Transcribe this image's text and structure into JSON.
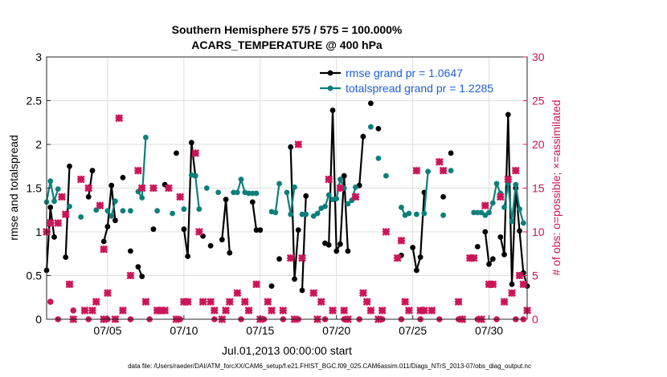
{
  "chart_data": {
    "type": "line",
    "title": "Southern Hemisphere 575 / 575 = 100.000%",
    "subtitle": "ACARS_TEMPERATURE @ 400 hPa",
    "xlabel": "Jul.01,2013 00:00:00 start",
    "ylabel": "rmse and totalspread",
    "y2label": "# of obs: o=possible; ×=assimilated",
    "footnote": "data file: /Users/raeder/DAI/ATM_forcXX/CAM6_setup/f.e21.FHIST_BGC.f09_025.CAM6assim.011/Diags_NTrS_2013-07/obs_diag_output.nc",
    "xlim": [
      1.0,
      32.5
    ],
    "ylim": [
      0,
      3
    ],
    "y2lim": [
      0,
      30
    ],
    "grid": true,
    "legend_position": "top-right",
    "x_ticks": [
      5,
      10,
      15,
      20,
      25,
      30
    ],
    "x_tick_labels": [
      "07/05",
      "07/10",
      "07/15",
      "07/20",
      "07/25",
      "07/30"
    ],
    "y_ticks": [
      0,
      0.5,
      1,
      1.5,
      2,
      2.5,
      3
    ],
    "y_tick_labels": [
      "0",
      "0.5",
      "1",
      "1.5",
      "2",
      "2.5",
      "3"
    ],
    "y2_ticks": [
      0,
      5,
      10,
      15,
      20,
      25,
      30
    ],
    "y2_tick_labels": [
      "0",
      "5",
      "10",
      "15",
      "20",
      "25",
      "30"
    ],
    "series": [
      {
        "name": "rmse grand pr = 1.0647",
        "color": "#000000",
        "axis": "left",
        "points": [
          [
            [
              1.0,
              0.56
            ],
            [
              1.25,
              1.28
            ],
            [
              1.5,
              0.94
            ]
          ],
          [
            [
              2.25,
              0.71
            ],
            [
              2.5,
              1.75
            ]
          ],
          [
            [
              3.75,
              1.4
            ],
            [
              4.0,
              1.7
            ]
          ],
          [
            [
              4.75,
              0.89
            ],
            [
              5.0,
              1.06
            ],
            [
              5.25,
              1.53
            ],
            [
              5.5,
              1.13
            ]
          ],
          [
            [
              6.0,
              1.62
            ]
          ],
          [
            [
              6.5,
              0.78
            ]
          ],
          [
            [
              7.0,
              0.6
            ],
            [
              7.25,
              0.49
            ]
          ],
          [
            [
              8.0,
              1.03
            ]
          ],
          [
            [
              8.75,
              1.54
            ]
          ],
          [
            [
              9.5,
              1.9
            ]
          ],
          [
            [
              10.0,
              1.03
            ],
            [
              10.25,
              0.72
            ],
            [
              10.5,
              2.02
            ],
            [
              10.75,
              1.64
            ]
          ],
          [
            [
              11.25,
              0.95
            ]
          ],
          [
            [
              11.75,
              0.84
            ]
          ],
          [
            [
              12.5,
              0.91
            ],
            [
              12.75,
              1.37
            ],
            [
              13.0,
              0.76
            ]
          ],
          [
            [
              14.5,
              1.34
            ],
            [
              14.75,
              1.02
            ],
            [
              15.0,
              1.02
            ]
          ],
          [
            [
              15.75,
              0.38
            ]
          ],
          [
            [
              16.25,
              0.69
            ]
          ],
          [
            [
              17.0,
              1.97
            ],
            [
              17.25,
              0.46
            ],
            [
              17.5,
              1.02
            ]
          ],
          [
            [
              17.75,
              0.33
            ],
            [
              18.0,
              1.41
            ]
          ],
          [
            [
              19.25,
              0.87
            ],
            [
              19.5,
              0.85
            ],
            [
              19.75,
              2.39
            ],
            [
              20.0,
              0.78
            ],
            [
              20.25,
              0.86
            ],
            [
              20.5,
              1.64
            ],
            [
              20.75,
              0.78
            ]
          ],
          [
            [
              21.5,
              1.53
            ],
            [
              21.75,
              2.09
            ]
          ],
          [
            [
              22.25,
              2.47
            ]
          ],
          [
            [
              22.75,
              2.18
            ]
          ],
          [
            [
              24.25,
              0.73
            ]
          ],
          [
            [
              25.0,
              0.82
            ],
            [
              25.25,
              0.56
            ],
            [
              25.5,
              0.71
            ],
            [
              25.75,
              1.45
            ]
          ],
          [
            [
              27.0,
              1.4
            ]
          ],
          [
            [
              27.5,
              1.9
            ]
          ],
          [
            [
              29.25,
              0.83
            ]
          ],
          [
            [
              29.75,
              1.0
            ],
            [
              30.0,
              0.63
            ],
            [
              30.25,
              0.69
            ]
          ],
          [
            [
              30.75,
              0.94
            ],
            [
              31.0,
              0.74
            ],
            [
              31.25,
              2.34
            ],
            [
              31.5,
              0.4
            ],
            [
              31.75,
              1.5
            ],
            [
              32.0,
              1.01
            ],
            [
              32.25,
              0.53
            ],
            [
              32.5,
              0.38
            ]
          ]
        ]
      },
      {
        "name": "totalspread grand pr = 1.2285",
        "color": "#0c7f7c",
        "axis": "left",
        "points": [
          [
            [
              1.0,
              1.34
            ],
            [
              1.25,
              1.58
            ],
            [
              1.5,
              1.35
            ],
            [
              1.75,
              1.49
            ]
          ],
          [
            [
              2.5,
              1.29
            ]
          ],
          [
            [
              3.25,
              1.17
            ]
          ],
          [
            [
              4.25,
              1.25
            ]
          ],
          [
            [
              5.0,
              1.24
            ],
            [
              5.25,
              1.18
            ],
            [
              5.5,
              1.35
            ]
          ],
          [
            [
              6.0,
              1.24
            ]
          ],
          [
            [
              6.5,
              1.24
            ]
          ],
          [
            [
              7.0,
              1.46
            ],
            [
              7.25,
              1.39
            ],
            [
              7.5,
              2.08
            ]
          ],
          [
            [
              8.25,
              1.24
            ]
          ],
          [
            [
              9.25,
              1.21
            ]
          ],
          [
            [
              10.0,
              1.26
            ]
          ],
          [
            [
              10.5,
              1.65
            ],
            [
              10.75,
              1.64
            ],
            [
              11.0,
              1.26
            ]
          ],
          [
            [
              11.5,
              1.5
            ]
          ],
          [
            [
              12.25,
              1.45
            ]
          ],
          [
            [
              13.25,
              1.45
            ],
            [
              13.5,
              1.45
            ],
            [
              13.75,
              1.6
            ],
            [
              14.0,
              1.45
            ]
          ],
          [
            [
              14.25,
              1.44
            ],
            [
              14.5,
              1.44
            ],
            [
              14.75,
              1.44
            ]
          ],
          [
            [
              15.75,
              1.23
            ],
            [
              16.0,
              1.22
            ],
            [
              16.25,
              1.55
            ]
          ],
          [
            [
              16.75,
              1.45
            ],
            [
              17.0,
              1.2
            ],
            [
              17.25,
              1.51
            ]
          ],
          [
            [
              17.75,
              1.2
            ],
            [
              18.0,
              1.2
            ]
          ],
          [
            [
              18.5,
              1.18
            ],
            [
              18.75,
              1.21
            ],
            [
              19.0,
              1.27
            ],
            [
              19.25,
              1.29
            ],
            [
              19.5,
              1.42
            ],
            [
              19.75,
              1.37
            ],
            [
              20.0,
              1.38
            ],
            [
              20.25,
              1.6
            ],
            [
              20.5,
              1.5
            ]
          ],
          [
            [
              20.75,
              1.32
            ],
            [
              21.0,
              1.36
            ],
            [
              21.25,
              1.51
            ]
          ],
          [
            [
              22.25,
              2.2
            ]
          ],
          [
            [
              22.75,
              1.84
            ]
          ],
          [
            [
              23.25,
              1.64
            ]
          ],
          [
            [
              24.25,
              1.28
            ],
            [
              24.5,
              1.19
            ],
            [
              24.75,
              1.21
            ]
          ],
          [
            [
              25.25,
              1.2
            ]
          ],
          [
            [
              25.75,
              1.21
            ],
            [
              26.0,
              1.69
            ]
          ],
          [
            [
              27.0,
              1.19
            ]
          ],
          [
            [
              27.5,
              1.7
            ]
          ],
          [
            [
              29.0,
              1.22
            ],
            [
              29.25,
              1.22
            ],
            [
              29.5,
              1.22
            ]
          ],
          [
            [
              29.75,
              1.19
            ],
            [
              30.0,
              1.22
            ],
            [
              30.25,
              1.33
            ],
            [
              30.5,
              1.55
            ],
            [
              30.75,
              1.44
            ]
          ],
          [
            [
              31.0,
              1.28
            ],
            [
              31.25,
              1.55
            ],
            [
              31.5,
              1.12
            ],
            [
              31.75,
              1.54
            ],
            [
              32.0,
              1.26
            ],
            [
              32.25,
              1.1
            ]
          ]
        ]
      },
      {
        "name": "# of obs possible",
        "color": "#cc1458",
        "axis": "right",
        "marker": "o",
        "values": [
          [
            1.25,
            2
          ],
          [
            1.75,
            0
          ],
          [
            2.75,
            1
          ],
          [
            3.75,
            0
          ],
          [
            5.0,
            0
          ],
          [
            6.5,
            0
          ],
          [
            7.75,
            0
          ],
          [
            9.75,
            0
          ],
          [
            12.0,
            0
          ],
          [
            13.75,
            0
          ],
          [
            15.25,
            0
          ],
          [
            16.5,
            0
          ],
          [
            17.5,
            0
          ],
          [
            19.25,
            0
          ],
          [
            20.5,
            0
          ],
          [
            21.5,
            0
          ],
          [
            23.0,
            0
          ],
          [
            24.25,
            0
          ],
          [
            25.5,
            0
          ],
          [
            26.75,
            0
          ],
          [
            28.0,
            0
          ],
          [
            29.25,
            0
          ],
          [
            30.5,
            0
          ],
          [
            31.75,
            0
          ],
          [
            32.25,
            0
          ]
        ]
      },
      {
        "name": "# of obs assimilated",
        "color": "#cc1458",
        "axis": "right",
        "marker": "x",
        "values": [
          [
            1.0,
            10
          ],
          [
            1.25,
            11
          ],
          [
            1.75,
            11
          ],
          [
            2.0,
            14
          ],
          [
            2.25,
            12
          ],
          [
            2.5,
            4
          ],
          [
            2.75,
            0
          ],
          [
            3.25,
            16
          ],
          [
            3.5,
            1
          ],
          [
            3.75,
            15
          ],
          [
            4.0,
            1
          ],
          [
            4.25,
            2
          ],
          [
            4.5,
            13
          ],
          [
            4.75,
            0
          ],
          [
            4.75,
            8
          ],
          [
            5.0,
            3
          ],
          [
            5.5,
            0
          ],
          [
            5.75,
            23
          ],
          [
            6.0,
            1
          ],
          [
            6.5,
            5
          ],
          [
            7.0,
            17
          ],
          [
            7.25,
            15
          ],
          [
            7.5,
            2
          ],
          [
            8.0,
            15
          ],
          [
            8.25,
            1
          ],
          [
            8.5,
            1
          ],
          [
            8.75,
            1
          ],
          [
            9.0,
            15
          ],
          [
            9.5,
            0
          ],
          [
            9.75,
            14
          ],
          [
            10.0,
            2
          ],
          [
            10.25,
            2
          ],
          [
            10.75,
            19
          ],
          [
            11.0,
            10
          ],
          [
            11.25,
            2
          ],
          [
            11.75,
            2
          ],
          [
            12.0,
            1
          ],
          [
            12.5,
            0
          ],
          [
            12.75,
            1
          ],
          [
            13.0,
            2
          ],
          [
            13.5,
            3
          ],
          [
            14.0,
            2
          ],
          [
            14.25,
            1
          ],
          [
            14.75,
            4
          ],
          [
            15.0,
            0
          ],
          [
            15.5,
            2
          ],
          [
            15.75,
            1
          ],
          [
            16.5,
            1
          ],
          [
            17.0,
            7
          ],
          [
            17.25,
            0
          ],
          [
            17.5,
            20
          ],
          [
            17.75,
            7
          ],
          [
            18.5,
            3
          ],
          [
            18.75,
            0
          ],
          [
            19.0,
            2
          ],
          [
            19.5,
            16
          ],
          [
            19.75,
            1
          ],
          [
            20.25,
            15
          ],
          [
            20.5,
            1
          ],
          [
            20.75,
            0
          ],
          [
            21.25,
            14
          ],
          [
            21.75,
            3
          ],
          [
            22.0,
            2
          ],
          [
            22.25,
            1
          ],
          [
            22.75,
            0
          ],
          [
            23.0,
            1
          ],
          [
            23.25,
            10
          ],
          [
            24.0,
            7
          ],
          [
            24.25,
            9
          ],
          [
            24.5,
            2
          ],
          [
            24.75,
            1
          ],
          [
            25.25,
            17
          ],
          [
            25.5,
            1
          ],
          [
            25.75,
            1
          ],
          [
            26.25,
            1
          ],
          [
            26.75,
            18
          ],
          [
            27.0,
            17
          ],
          [
            28.0,
            2
          ],
          [
            28.25,
            0
          ],
          [
            28.75,
            7
          ],
          [
            29.0,
            7
          ],
          [
            29.5,
            0
          ],
          [
            29.75,
            13
          ],
          [
            30.0,
            4
          ],
          [
            30.25,
            4
          ],
          [
            30.75,
            14
          ],
          [
            31.0,
            2
          ],
          [
            31.25,
            16
          ],
          [
            31.5,
            3
          ],
          [
            31.75,
            17
          ],
          [
            32.0,
            5
          ],
          [
            32.25,
            4
          ],
          [
            32.5,
            1
          ]
        ]
      }
    ]
  }
}
